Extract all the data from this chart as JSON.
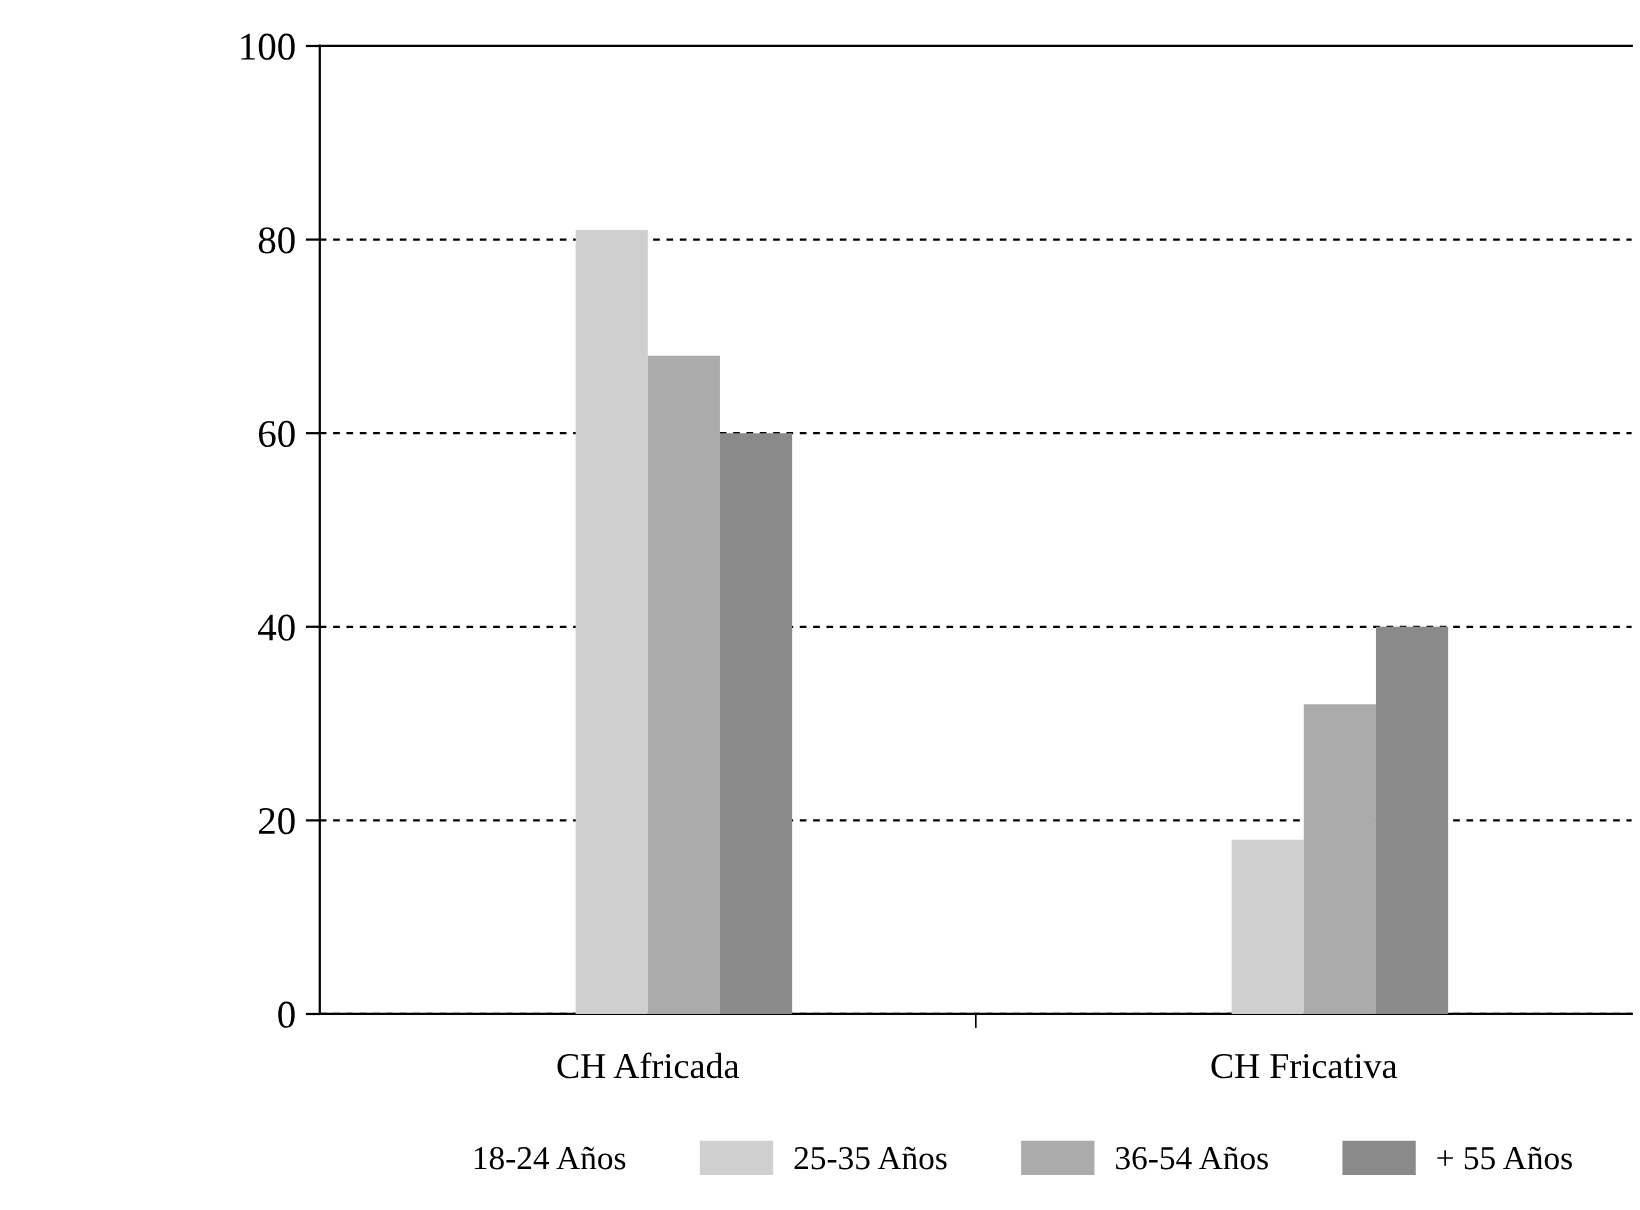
{
  "chart_data": {
    "type": "bar",
    "categories": [
      "CH Africada",
      "CH Fricativa"
    ],
    "series": [
      {
        "name": "18-24 Años",
        "values": [
          null,
          null
        ]
      },
      {
        "name": "25-35 Años",
        "color": "#cfcfcf",
        "values": [
          81,
          18
        ]
      },
      {
        "name": "36-54 Años",
        "color": "#ababab",
        "values": [
          68,
          32
        ]
      },
      {
        "name": "+ 55 Años",
        "color": "#8a8a8a",
        "values": [
          60,
          40
        ]
      }
    ],
    "ylim": [
      0,
      100
    ],
    "yticks": [
      0,
      20,
      40,
      60,
      80,
      100
    ],
    "grid": "y",
    "legend": "bottom"
  }
}
